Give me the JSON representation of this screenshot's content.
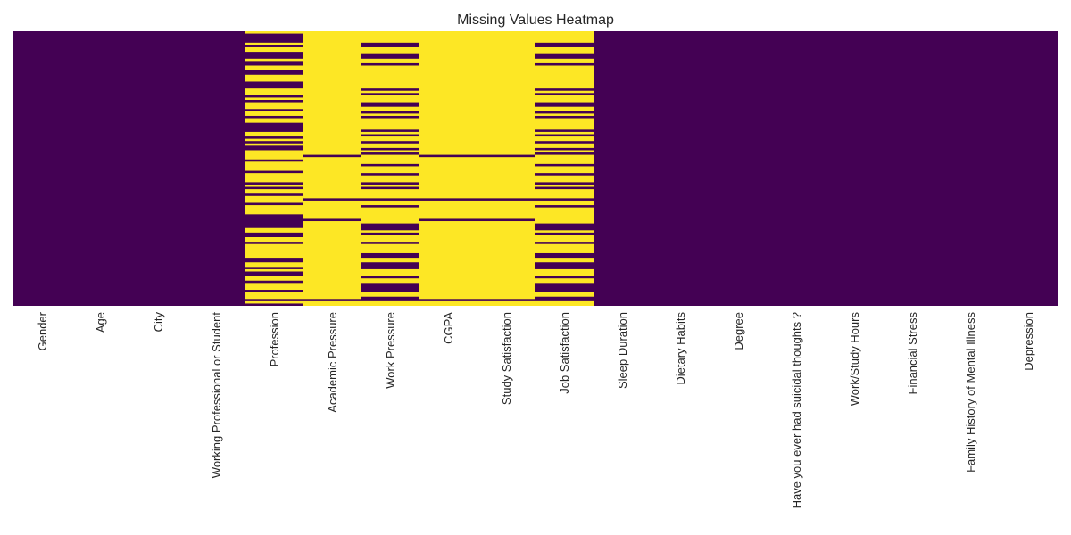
{
  "chart_data": {
    "type": "heatmap",
    "title": "Missing Values Heatmap",
    "xlabel": "",
    "ylabel": "",
    "colormap": "viridis",
    "grid": false,
    "legend": "none",
    "colors": {
      "present": "#440154",
      "missing": "#fde725"
    },
    "columns": [
      "Gender",
      "Age",
      "City",
      "Working Professional or Student",
      "Profession",
      "Academic Pressure",
      "Work Pressure",
      "CGPA",
      "Study Satisfaction",
      "Job Satisfaction",
      "Sleep Duration",
      "Dietary Habits",
      "Degree",
      "Have you ever had suicidal thoughts ?",
      "Work/Study Hours",
      "Financial Stress",
      "Family History of Mental Illness",
      "Depression"
    ],
    "approx_missing_fraction": [
      0,
      0,
      0,
      0,
      0.6,
      0.95,
      0.65,
      0.95,
      0.95,
      0.65,
      0,
      0,
      0,
      0,
      0,
      0,
      0,
      0
    ]
  }
}
